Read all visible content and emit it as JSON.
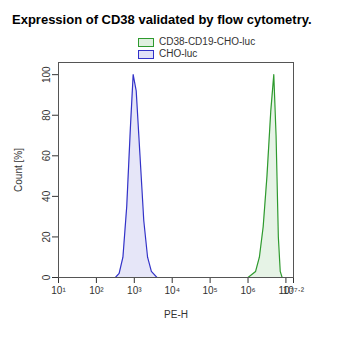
{
  "chart_data": {
    "type": "area",
    "title": "Expression of CD38 validated by flow cytometry.",
    "x_label": "PE-H",
    "y_label": "Count [%]",
    "log": "x",
    "grid": false,
    "legend": "top-left",
    "xlim": [
      10,
      15848932
    ],
    "xticks": [
      {
        "value": 10,
        "label": "10¹"
      },
      {
        "value": 100,
        "label": "10²"
      },
      {
        "value": 1000,
        "label": "10³"
      },
      {
        "value": 10000,
        "label": "10⁴"
      },
      {
        "value": 100000,
        "label": "10⁵"
      },
      {
        "value": 1000000,
        "label": "10⁶"
      },
      {
        "value": 10000000,
        "label": "10⁷"
      },
      {
        "value": 15848932,
        "label": "10⁷·²"
      }
    ],
    "ylim": [
      0,
      106
    ],
    "yticks": [
      0,
      20,
      40,
      60,
      80,
      100
    ],
    "series": [
      {
        "name": "CD38-CD19-CHO-luc",
        "color": "#2e9a2e",
        "x": [
          1000000,
          1584893,
          1995262,
          2511886,
          3162278,
          3981072,
          4786301,
          5495409,
          6309573,
          7079458,
          7943282
        ],
        "values": [
          0,
          3,
          10,
          25,
          50,
          82,
          100,
          70,
          20,
          3,
          0
        ]
      },
      {
        "name": "CHO-luc",
        "color": "#3232c8",
        "x": [
          316,
          398,
          501,
          631,
          794,
          933,
          1122,
          1413,
          1778,
          2239,
          2818,
          3981
        ],
        "values": [
          0,
          2,
          10,
          35,
          75,
          100,
          92,
          60,
          28,
          10,
          3,
          0
        ]
      }
    ]
  }
}
